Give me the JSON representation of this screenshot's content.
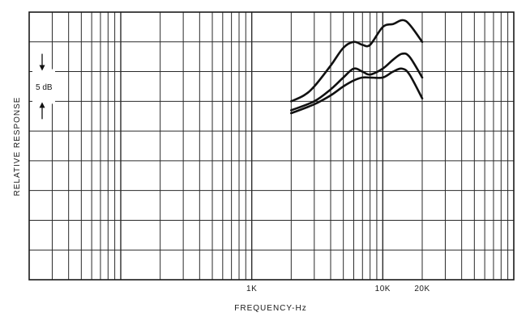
{
  "chart_data": {
    "type": "line",
    "title": "",
    "xlabel": "FREQUENCY-Hz",
    "ylabel": "RELATIVE RESPONSE",
    "x_scale": "log",
    "xlim": [
      20,
      100000
    ],
    "ylim": [
      0,
      45
    ],
    "y_units": "dB",
    "grid": true,
    "x_tick_labels": [
      {
        "value": 1000,
        "label": "1K"
      },
      {
        "value": 10000,
        "label": "10K"
      },
      {
        "value": 20000,
        "label": "20K"
      }
    ],
    "scale_annotation": {
      "label": "5 dB",
      "value": 5,
      "from": 35,
      "to": 30
    },
    "series": [
      {
        "x": [
          2000,
          2500,
          3000,
          4000,
          5000,
          6000,
          7000,
          8000,
          10000,
          12000,
          15000,
          20000
        ],
        "values": [
          30,
          31,
          32.5,
          36,
          39,
          40,
          39.5,
          39.5,
          42.5,
          43,
          43.5,
          40
        ]
      },
      {
        "x": [
          2000,
          3000,
          4000,
          5000,
          6000,
          7000,
          8000,
          10000,
          12000,
          14000,
          16000,
          20000
        ],
        "values": [
          28.5,
          30,
          32,
          34,
          35.5,
          35,
          34.5,
          35.5,
          37,
          38,
          37.5,
          34
        ]
      },
      {
        "x": [
          2000,
          3000,
          4000,
          5000,
          6000,
          7000,
          8000,
          10000,
          12000,
          14000,
          16000,
          20000
        ],
        "values": [
          28,
          29.5,
          31,
          32.5,
          33.5,
          34,
          34,
          34,
          35,
          35.5,
          34.5,
          30.5
        ]
      }
    ]
  }
}
